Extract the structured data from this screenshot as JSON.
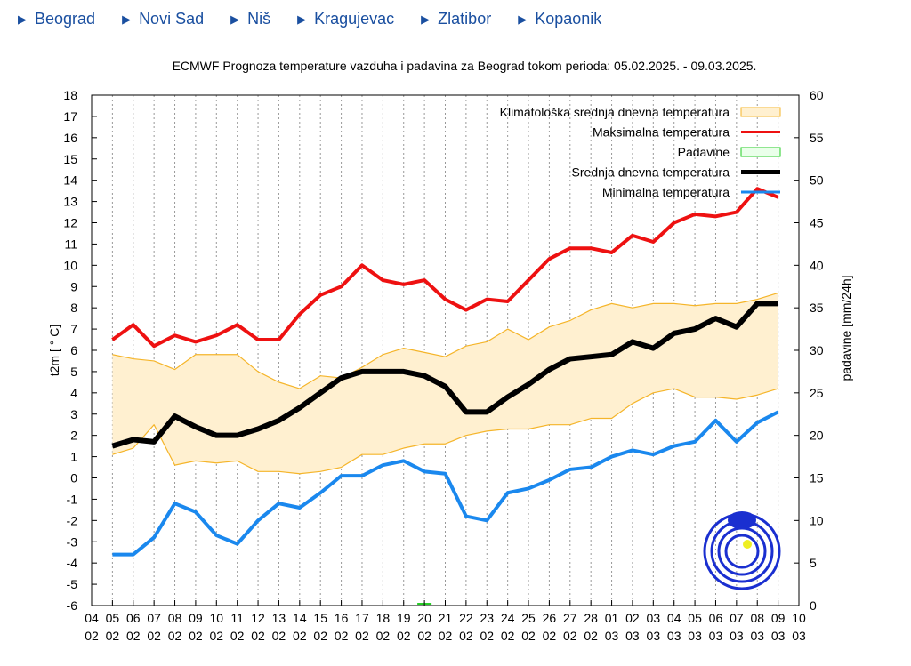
{
  "nav": [
    "Beograd",
    "Novi Sad",
    "Niš",
    "Kragujevac",
    "Zlatibor",
    "Kopaonik"
  ],
  "chart_data": {
    "type": "line",
    "title": "ECMWF Prognoza temperature vazduha i padavina za Beograd tokom perioda: 05.02.2025. - 09.03.2025.",
    "ylabel": "t2m [ ° C]",
    "y2label": "padavine [mm/24h]",
    "ylim": [
      -6,
      18
    ],
    "y2lim": [
      0,
      60
    ],
    "yticks": [
      "-6",
      "-5",
      "-4",
      "-3",
      "-2",
      "-1",
      "0",
      "1",
      "2",
      "3",
      "4",
      "5",
      "6",
      "7",
      "8",
      "9",
      "10",
      "11",
      "12",
      "13",
      "14",
      "15",
      "16",
      "17",
      "18"
    ],
    "y2ticks": [
      "0",
      "5",
      "10",
      "15",
      "20",
      "25",
      "30",
      "35",
      "40",
      "45",
      "50",
      "55",
      "60"
    ],
    "xticks": [
      [
        "04",
        "02"
      ],
      [
        "05",
        "02"
      ],
      [
        "06",
        "02"
      ],
      [
        "07",
        "02"
      ],
      [
        "08",
        "02"
      ],
      [
        "09",
        "02"
      ],
      [
        "10",
        "02"
      ],
      [
        "11",
        "02"
      ],
      [
        "12",
        "02"
      ],
      [
        "13",
        "02"
      ],
      [
        "14",
        "02"
      ],
      [
        "15",
        "02"
      ],
      [
        "16",
        "02"
      ],
      [
        "17",
        "02"
      ],
      [
        "18",
        "02"
      ],
      [
        "19",
        "02"
      ],
      [
        "20",
        "02"
      ],
      [
        "21",
        "02"
      ],
      [
        "22",
        "02"
      ],
      [
        "23",
        "02"
      ],
      [
        "24",
        "02"
      ],
      [
        "25",
        "02"
      ],
      [
        "26",
        "02"
      ],
      [
        "27",
        "02"
      ],
      [
        "28",
        "02"
      ],
      [
        "01",
        "03"
      ],
      [
        "02",
        "03"
      ],
      [
        "03",
        "03"
      ],
      [
        "04",
        "03"
      ],
      [
        "05",
        "03"
      ],
      [
        "06",
        "03"
      ],
      [
        "07",
        "03"
      ],
      [
        "08",
        "03"
      ],
      [
        "09",
        "03"
      ],
      [
        "10",
        "03"
      ]
    ],
    "x_start_index": 1,
    "legend": [
      "Klimatološka srednja dnevna temperatura",
      "Maksimalna temperatura",
      "Padavine",
      "Srednja dnevna temperatura",
      "Minimalna temperatura"
    ],
    "legend_position": "top-right",
    "colors": {
      "clim_fill": "#fff0d0",
      "clim_line": "#f5b52a",
      "max": "#ee1111",
      "precip": "#22cc22",
      "mean": "#000000",
      "min": "#1a88ee"
    },
    "series": {
      "clim_upper": [
        5.8,
        5.6,
        5.5,
        5.1,
        5.8,
        5.8,
        5.8,
        5.0,
        4.5,
        4.2,
        4.8,
        4.7,
        5.2,
        5.8,
        6.1,
        5.9,
        5.7,
        6.2,
        6.4,
        7.0,
        6.5,
        7.1,
        7.4,
        7.9,
        8.2,
        8.0,
        8.2,
        8.2,
        8.1,
        8.2,
        8.2,
        8.4,
        8.7
      ],
      "clim_lower": [
        1.1,
        1.4,
        2.5,
        0.6,
        0.8,
        0.7,
        0.8,
        0.3,
        0.3,
        0.2,
        0.3,
        0.5,
        1.1,
        1.1,
        1.4,
        1.6,
        1.6,
        2.0,
        2.2,
        2.3,
        2.3,
        2.5,
        2.5,
        2.8,
        2.8,
        3.5,
        4.0,
        4.2,
        3.8,
        3.8,
        3.7,
        3.9,
        4.2
      ],
      "max": [
        6.5,
        7.2,
        6.2,
        6.7,
        6.4,
        6.7,
        7.2,
        6.5,
        6.5,
        7.7,
        8.6,
        9.0,
        10.0,
        9.3,
        9.1,
        9.3,
        8.4,
        7.9,
        8.4,
        8.3,
        9.3,
        10.3,
        10.8,
        10.8,
        10.6,
        11.4,
        11.1,
        12.0,
        12.4,
        12.3,
        12.5,
        13.6,
        13.2
      ],
      "mean": [
        1.5,
        1.8,
        1.7,
        2.9,
        2.4,
        2.0,
        2.0,
        2.3,
        2.7,
        3.3,
        4.0,
        4.7,
        5.0,
        5.0,
        5.0,
        4.8,
        4.3,
        3.1,
        3.1,
        3.8,
        4.4,
        5.1,
        5.6,
        5.7,
        5.8,
        6.4,
        6.1,
        6.8,
        7.0,
        7.5,
        7.1,
        8.2,
        8.2
      ],
      "min": [
        -3.6,
        -3.6,
        -2.8,
        -1.2,
        -1.6,
        -2.7,
        -3.1,
        -2.0,
        -1.2,
        -1.4,
        -0.7,
        0.1,
        0.1,
        0.6,
        0.8,
        0.3,
        0.2,
        -1.8,
        -2.0,
        -0.7,
        -0.5,
        -0.1,
        0.4,
        0.5,
        1.0,
        1.3,
        1.1,
        1.5,
        1.7,
        2.7,
        1.7,
        2.6,
        3.1
      ],
      "precip": [
        0,
        0,
        0,
        0,
        0,
        0,
        0,
        0,
        0,
        0,
        0,
        0,
        0,
        0,
        0,
        0.1,
        0,
        0,
        0,
        0,
        0,
        0,
        0,
        0,
        0,
        0,
        0,
        0,
        0,
        0,
        0,
        0,
        0
      ]
    }
  }
}
